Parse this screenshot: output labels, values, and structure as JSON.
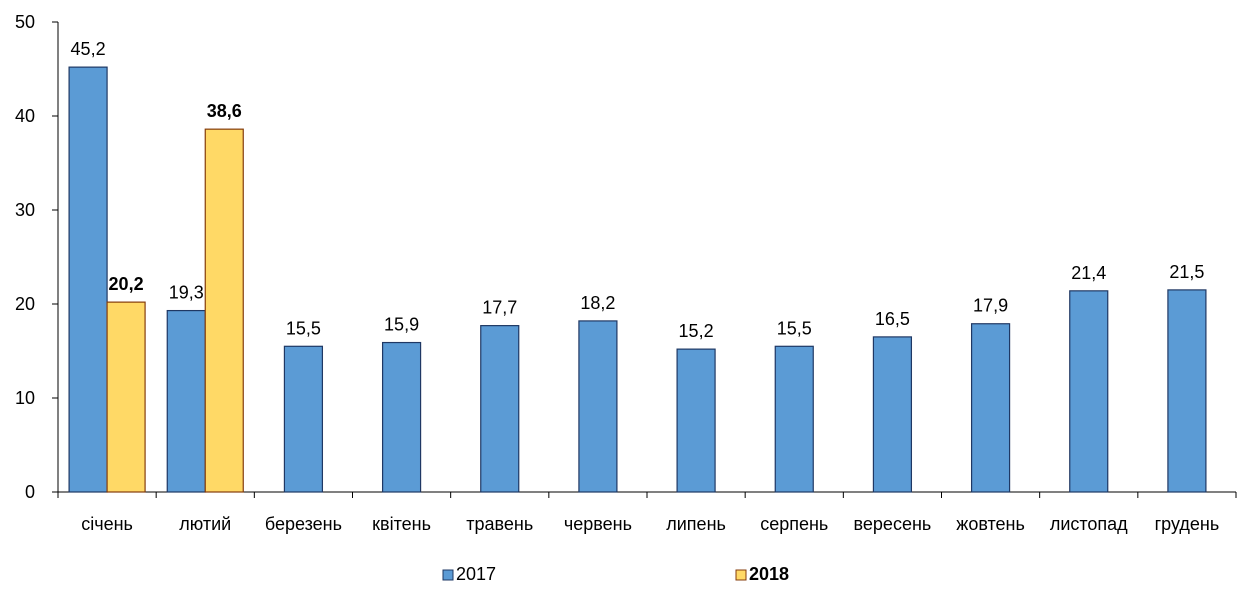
{
  "chart_data": {
    "type": "bar",
    "title": "",
    "xlabel": "",
    "ylabel": "",
    "ylim": [
      0,
      50
    ],
    "yticks": [
      0,
      10,
      20,
      30,
      40,
      50
    ],
    "grid": false,
    "legend_position": "bottom",
    "categories": [
      "січень",
      "лютий",
      "березень",
      "квітень",
      "травень",
      "червень",
      "липень",
      "серпень",
      "вересень",
      "жовтень",
      "листопад",
      "грудень"
    ],
    "series": [
      {
        "name": "2017",
        "color": "#5B9BD5",
        "bold": false,
        "values": [
          45.2,
          19.3,
          15.5,
          15.9,
          17.7,
          18.2,
          15.2,
          15.5,
          16.5,
          17.9,
          21.4,
          21.5
        ],
        "labels": [
          "45,2",
          "19,3",
          "15,5",
          "15,9",
          "17,7",
          "18,2",
          "15,2",
          "15,5",
          "16,5",
          "17,9",
          "21,4",
          "21,5"
        ]
      },
      {
        "name": "2018",
        "color": "#FFD966",
        "bold": true,
        "values": [
          20.2,
          38.6,
          null,
          null,
          null,
          null,
          null,
          null,
          null,
          null,
          null,
          null
        ],
        "labels": [
          "20,2",
          "38,6",
          null,
          null,
          null,
          null,
          null,
          null,
          null,
          null,
          null,
          null
        ]
      }
    ]
  }
}
